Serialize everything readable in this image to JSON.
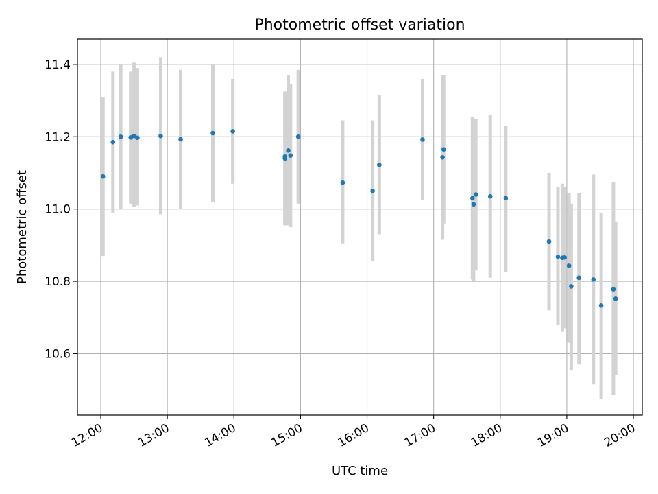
{
  "chart_data": {
    "type": "scatter",
    "title": "Photometric offset variation",
    "xlabel": "UTC time",
    "ylabel": "Photometric offset",
    "x_axis_type": "time",
    "xlim": [
      "11:39",
      "20:08"
    ],
    "ylim": [
      10.43,
      11.47
    ],
    "x_ticks": [
      "12:00",
      "13:00",
      "14:00",
      "15:00",
      "16:00",
      "17:00",
      "18:00",
      "19:00",
      "20:00"
    ],
    "y_ticks": [
      10.6,
      10.8,
      11.0,
      11.2,
      11.4
    ],
    "y_tick_labels": [
      "10.6",
      "10.8",
      "11.0",
      "11.2",
      "11.4"
    ],
    "grid": true,
    "marker_color": "#1f77b4",
    "errorbar_color": "#d3d3d3",
    "points": [
      {
        "t": "12:02",
        "y": 11.09,
        "lo": 10.87,
        "hi": 11.31
      },
      {
        "t": "12:11",
        "y": 11.185,
        "lo": 10.99,
        "hi": 11.38
      },
      {
        "t": "12:18",
        "y": 11.2,
        "lo": 11.0,
        "hi": 11.4
      },
      {
        "t": "12:27",
        "y": 11.198,
        "lo": 11.015,
        "hi": 11.38
      },
      {
        "t": "12:30",
        "y": 11.202,
        "lo": 11.005,
        "hi": 11.405
      },
      {
        "t": "12:33",
        "y": 11.197,
        "lo": 11.01,
        "hi": 11.39
      },
      {
        "t": "12:54",
        "y": 11.202,
        "lo": 10.985,
        "hi": 11.42
      },
      {
        "t": "13:12",
        "y": 11.193,
        "lo": 11.0,
        "hi": 11.385
      },
      {
        "t": "13:41",
        "y": 11.21,
        "lo": 11.02,
        "hi": 11.4
      },
      {
        "t": "13:59",
        "y": 11.215,
        "lo": 11.07,
        "hi": 11.36
      },
      {
        "t": "14:46",
        "y": 11.145,
        "lo": 10.955,
        "hi": 11.325
      },
      {
        "t": "14:46",
        "y": 11.14,
        "lo": 10.96,
        "hi": 11.32
      },
      {
        "t": "14:49",
        "y": 11.162,
        "lo": 10.955,
        "hi": 11.37
      },
      {
        "t": "14:51",
        "y": 11.148,
        "lo": 10.95,
        "hi": 11.345
      },
      {
        "t": "14:58",
        "y": 11.2,
        "lo": 11.015,
        "hi": 11.385
      },
      {
        "t": "15:38",
        "y": 11.073,
        "lo": 10.905,
        "hi": 11.245
      },
      {
        "t": "16:05",
        "y": 11.05,
        "lo": 10.855,
        "hi": 11.245
      },
      {
        "t": "16:11",
        "y": 11.122,
        "lo": 10.93,
        "hi": 11.315
      },
      {
        "t": "16:50",
        "y": 11.192,
        "lo": 11.025,
        "hi": 11.36
      },
      {
        "t": "17:08",
        "y": 11.143,
        "lo": 10.915,
        "hi": 11.37
      },
      {
        "t": "17:09",
        "y": 11.165,
        "lo": 10.96,
        "hi": 11.37
      },
      {
        "t": "17:35",
        "y": 11.03,
        "lo": 10.805,
        "hi": 11.255
      },
      {
        "t": "17:36",
        "y": 11.013,
        "lo": 10.8,
        "hi": 11.225
      },
      {
        "t": "17:38",
        "y": 11.04,
        "lo": 10.83,
        "hi": 11.25
      },
      {
        "t": "17:51",
        "y": 11.035,
        "lo": 10.81,
        "hi": 11.26
      },
      {
        "t": "18:05",
        "y": 11.03,
        "lo": 10.825,
        "hi": 11.23
      },
      {
        "t": "18:44",
        "y": 10.91,
        "lo": 10.72,
        "hi": 11.1
      },
      {
        "t": "18:52",
        "y": 10.868,
        "lo": 10.68,
        "hi": 11.06
      },
      {
        "t": "18:56",
        "y": 10.865,
        "lo": 10.66,
        "hi": 11.07
      },
      {
        "t": "18:58",
        "y": 10.866,
        "lo": 10.67,
        "hi": 11.06
      },
      {
        "t": "19:02",
        "y": 10.843,
        "lo": 10.63,
        "hi": 11.045
      },
      {
        "t": "19:04",
        "y": 10.786,
        "lo": 10.555,
        "hi": 11.015
      },
      {
        "t": "19:11",
        "y": 10.81,
        "lo": 10.57,
        "hi": 11.045
      },
      {
        "t": "19:24",
        "y": 10.805,
        "lo": 10.515,
        "hi": 11.095
      },
      {
        "t": "19:31",
        "y": 10.733,
        "lo": 10.475,
        "hi": 10.99
      },
      {
        "t": "19:42",
        "y": 10.778,
        "lo": 10.485,
        "hi": 11.075
      },
      {
        "t": "19:44",
        "y": 10.752,
        "lo": 10.54,
        "hi": 10.965
      }
    ]
  }
}
